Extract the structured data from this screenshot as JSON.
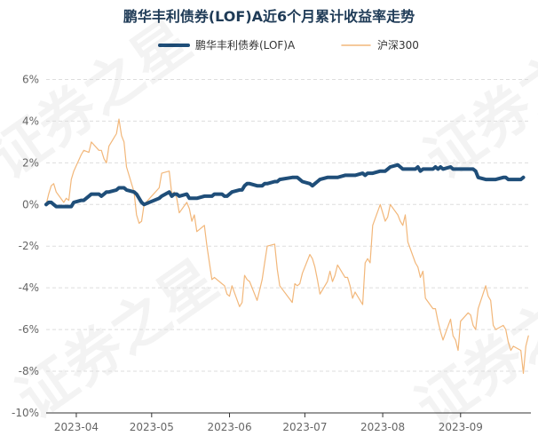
{
  "chart_data": {
    "type": "line",
    "title": "鹏华丰利债券(LOF)A近6个月累计收益率走势",
    "xlabel": "",
    "ylabel": "",
    "ylim": [
      -10,
      7
    ],
    "xlim": [
      "2023-03-20",
      "2023-09-29"
    ],
    "y_ticks": [
      "6%",
      "4%",
      "2%",
      "0%",
      "-2%",
      "-4%",
      "-6%",
      "-8%",
      "-10%"
    ],
    "x_ticks": [
      {
        "date": "2023-04-01",
        "label": "2023-04"
      },
      {
        "date": "2023-05-01",
        "label": "2023-05"
      },
      {
        "date": "2023-06-01",
        "label": "2023-06"
      },
      {
        "date": "2023-07-01",
        "label": "2023-07"
      },
      {
        "date": "2023-08-01",
        "label": "2023-08"
      },
      {
        "date": "2023-09-01",
        "label": "2023-09"
      }
    ],
    "grid": true,
    "legend_position": "top-center",
    "watermark": "证券之星",
    "series": [
      {
        "name": "鹏华丰利债券(LOF)A",
        "color": "#1f4e79",
        "points": [
          [
            "2023-03-20",
            0.0
          ],
          [
            "2023-03-21",
            0.1
          ],
          [
            "2023-03-22",
            0.1
          ],
          [
            "2023-03-23",
            0.0
          ],
          [
            "2023-03-24",
            -0.1
          ],
          [
            "2023-03-27",
            -0.1
          ],
          [
            "2023-03-28",
            -0.1
          ],
          [
            "2023-03-29",
            -0.1
          ],
          [
            "2023-03-30",
            -0.1
          ],
          [
            "2023-03-31",
            0.1
          ],
          [
            "2023-04-03",
            0.2
          ],
          [
            "2023-04-04",
            0.2
          ],
          [
            "2023-04-06",
            0.4
          ],
          [
            "2023-04-07",
            0.5
          ],
          [
            "2023-04-10",
            0.5
          ],
          [
            "2023-04-11",
            0.4
          ],
          [
            "2023-04-12",
            0.5
          ],
          [
            "2023-04-13",
            0.6
          ],
          [
            "2023-04-14",
            0.6
          ],
          [
            "2023-04-17",
            0.7
          ],
          [
            "2023-04-18",
            0.8
          ],
          [
            "2023-04-19",
            0.8
          ],
          [
            "2023-04-20",
            0.8
          ],
          [
            "2023-04-21",
            0.7
          ],
          [
            "2023-04-24",
            0.6
          ],
          [
            "2023-04-25",
            0.5
          ],
          [
            "2023-04-26",
            0.3
          ],
          [
            "2023-04-27",
            0.1
          ],
          [
            "2023-04-28",
            0.0
          ],
          [
            "2023-05-04",
            0.3
          ],
          [
            "2023-05-05",
            0.4
          ],
          [
            "2023-05-08",
            0.6
          ],
          [
            "2023-05-09",
            0.4
          ],
          [
            "2023-05-10",
            0.5
          ],
          [
            "2023-05-11",
            0.5
          ],
          [
            "2023-05-12",
            0.4
          ],
          [
            "2023-05-15",
            0.5
          ],
          [
            "2023-05-16",
            0.3
          ],
          [
            "2023-05-17",
            0.3
          ],
          [
            "2023-05-18",
            0.3
          ],
          [
            "2023-05-19",
            0.3
          ],
          [
            "2023-05-22",
            0.4
          ],
          [
            "2023-05-23",
            0.4
          ],
          [
            "2023-05-24",
            0.4
          ],
          [
            "2023-05-25",
            0.4
          ],
          [
            "2023-05-26",
            0.5
          ],
          [
            "2023-05-29",
            0.5
          ],
          [
            "2023-05-30",
            0.4
          ],
          [
            "2023-05-31",
            0.4
          ],
          [
            "2023-06-01",
            0.5
          ],
          [
            "2023-06-02",
            0.6
          ],
          [
            "2023-06-05",
            0.7
          ],
          [
            "2023-06-06",
            0.7
          ],
          [
            "2023-06-07",
            0.9
          ],
          [
            "2023-06-08",
            1.0
          ],
          [
            "2023-06-09",
            1.0
          ],
          [
            "2023-06-12",
            0.9
          ],
          [
            "2023-06-13",
            0.9
          ],
          [
            "2023-06-14",
            0.9
          ],
          [
            "2023-06-15",
            1.0
          ],
          [
            "2023-06-16",
            1.0
          ],
          [
            "2023-06-19",
            1.1
          ],
          [
            "2023-06-20",
            1.1
          ],
          [
            "2023-06-21",
            1.2
          ],
          [
            "2023-06-26",
            1.3
          ],
          [
            "2023-06-27",
            1.3
          ],
          [
            "2023-06-28",
            1.3
          ],
          [
            "2023-06-29",
            1.2
          ],
          [
            "2023-06-30",
            1.1
          ],
          [
            "2023-07-03",
            1.0
          ],
          [
            "2023-07-04",
            0.9
          ],
          [
            "2023-07-05",
            1.0
          ],
          [
            "2023-07-06",
            1.1
          ],
          [
            "2023-07-07",
            1.2
          ],
          [
            "2023-07-10",
            1.3
          ],
          [
            "2023-07-11",
            1.3
          ],
          [
            "2023-07-12",
            1.3
          ],
          [
            "2023-07-13",
            1.3
          ],
          [
            "2023-07-14",
            1.3
          ],
          [
            "2023-07-17",
            1.4
          ],
          [
            "2023-07-18",
            1.4
          ],
          [
            "2023-07-19",
            1.4
          ],
          [
            "2023-07-20",
            1.4
          ],
          [
            "2023-07-21",
            1.4
          ],
          [
            "2023-07-24",
            1.5
          ],
          [
            "2023-07-25",
            1.4
          ],
          [
            "2023-07-26",
            1.5
          ],
          [
            "2023-07-27",
            1.5
          ],
          [
            "2023-07-28",
            1.5
          ],
          [
            "2023-07-31",
            1.6
          ],
          [
            "2023-08-01",
            1.6
          ],
          [
            "2023-08-02",
            1.6
          ],
          [
            "2023-08-03",
            1.7
          ],
          [
            "2023-08-04",
            1.8
          ],
          [
            "2023-08-07",
            1.9
          ],
          [
            "2023-08-08",
            1.8
          ],
          [
            "2023-08-09",
            1.7
          ],
          [
            "2023-08-10",
            1.7
          ],
          [
            "2023-08-11",
            1.7
          ],
          [
            "2023-08-14",
            1.7
          ],
          [
            "2023-08-15",
            1.8
          ],
          [
            "2023-08-16",
            1.6
          ],
          [
            "2023-08-17",
            1.7
          ],
          [
            "2023-08-18",
            1.7
          ],
          [
            "2023-08-21",
            1.7
          ],
          [
            "2023-08-22",
            1.8
          ],
          [
            "2023-08-23",
            1.7
          ],
          [
            "2023-08-24",
            1.8
          ],
          [
            "2023-08-25",
            1.7
          ],
          [
            "2023-08-28",
            1.8
          ],
          [
            "2023-08-29",
            1.7
          ],
          [
            "2023-08-30",
            1.7
          ],
          [
            "2023-08-31",
            1.7
          ],
          [
            "2023-09-01",
            1.7
          ],
          [
            "2023-09-04",
            1.7
          ],
          [
            "2023-09-05",
            1.7
          ],
          [
            "2023-09-06",
            1.7
          ],
          [
            "2023-09-07",
            1.6
          ],
          [
            "2023-09-08",
            1.3
          ],
          [
            "2023-09-11",
            1.2
          ],
          [
            "2023-09-12",
            1.2
          ],
          [
            "2023-09-13",
            1.2
          ],
          [
            "2023-09-14",
            1.2
          ],
          [
            "2023-09-15",
            1.2
          ],
          [
            "2023-09-18",
            1.3
          ],
          [
            "2023-09-19",
            1.3
          ],
          [
            "2023-09-20",
            1.2
          ],
          [
            "2023-09-21",
            1.2
          ],
          [
            "2023-09-22",
            1.2
          ],
          [
            "2023-09-25",
            1.2
          ],
          [
            "2023-09-26",
            1.3
          ]
        ]
      },
      {
        "name": "沪深300",
        "color": "#f2b77a",
        "points": [
          [
            "2023-03-20",
            0.0
          ],
          [
            "2023-03-21",
            0.5
          ],
          [
            "2023-03-22",
            0.9
          ],
          [
            "2023-03-23",
            1.0
          ],
          [
            "2023-03-24",
            0.6
          ],
          [
            "2023-03-27",
            0.1
          ],
          [
            "2023-03-28",
            0.3
          ],
          [
            "2023-03-29",
            0.2
          ],
          [
            "2023-03-30",
            1.2
          ],
          [
            "2023-03-31",
            1.6
          ],
          [
            "2023-04-03",
            2.4
          ],
          [
            "2023-04-04",
            2.6
          ],
          [
            "2023-04-06",
            2.5
          ],
          [
            "2023-04-07",
            3.0
          ],
          [
            "2023-04-10",
            2.6
          ],
          [
            "2023-04-11",
            2.6
          ],
          [
            "2023-04-12",
            2.2
          ],
          [
            "2023-04-13",
            2.0
          ],
          [
            "2023-04-14",
            2.8
          ],
          [
            "2023-04-17",
            3.4
          ],
          [
            "2023-04-18",
            4.1
          ],
          [
            "2023-04-19",
            3.3
          ],
          [
            "2023-04-20",
            3.0
          ],
          [
            "2023-04-21",
            1.8
          ],
          [
            "2023-04-24",
            0.6
          ],
          [
            "2023-04-25",
            -0.5
          ],
          [
            "2023-04-26",
            -0.9
          ],
          [
            "2023-04-27",
            -0.8
          ],
          [
            "2023-04-28",
            0.0
          ],
          [
            "2023-05-04",
            0.8
          ],
          [
            "2023-05-05",
            1.5
          ],
          [
            "2023-05-08",
            1.6
          ],
          [
            "2023-05-09",
            0.5
          ],
          [
            "2023-05-10",
            0.6
          ],
          [
            "2023-05-11",
            0.3
          ],
          [
            "2023-05-12",
            -0.4
          ],
          [
            "2023-05-15",
            0.1
          ],
          [
            "2023-05-16",
            -0.2
          ],
          [
            "2023-05-17",
            -0.8
          ],
          [
            "2023-05-18",
            -0.5
          ],
          [
            "2023-05-19",
            -1.3
          ],
          [
            "2023-05-22",
            -1.0
          ],
          [
            "2023-05-23",
            -2.0
          ],
          [
            "2023-05-24",
            -2.8
          ],
          [
            "2023-05-25",
            -3.6
          ],
          [
            "2023-05-26",
            -3.5
          ],
          [
            "2023-05-29",
            -3.8
          ],
          [
            "2023-05-30",
            -3.9
          ],
          [
            "2023-05-31",
            -4.3
          ],
          [
            "2023-06-01",
            -4.4
          ],
          [
            "2023-06-02",
            -3.9
          ],
          [
            "2023-06-05",
            -4.9
          ],
          [
            "2023-06-06",
            -4.7
          ],
          [
            "2023-06-07",
            -3.4
          ],
          [
            "2023-06-08",
            -3.6
          ],
          [
            "2023-06-09",
            -3.7
          ],
          [
            "2023-06-12",
            -4.6
          ],
          [
            "2023-06-13",
            -4.1
          ],
          [
            "2023-06-14",
            -3.6
          ],
          [
            "2023-06-15",
            -2.8
          ],
          [
            "2023-06-16",
            -2.0
          ],
          [
            "2023-06-19",
            -1.9
          ],
          [
            "2023-06-20",
            -3.1
          ],
          [
            "2023-06-21",
            -3.9
          ],
          [
            "2023-06-26",
            -4.7
          ],
          [
            "2023-06-27",
            -3.8
          ],
          [
            "2023-06-28",
            -3.9
          ],
          [
            "2023-06-29",
            -3.8
          ],
          [
            "2023-06-30",
            -3.3
          ],
          [
            "2023-07-03",
            -2.4
          ],
          [
            "2023-07-04",
            -2.6
          ],
          [
            "2023-07-05",
            -3.0
          ],
          [
            "2023-07-06",
            -3.6
          ],
          [
            "2023-07-07",
            -4.3
          ],
          [
            "2023-07-10",
            -3.7
          ],
          [
            "2023-07-11",
            -3.2
          ],
          [
            "2023-07-12",
            -3.7
          ],
          [
            "2023-07-13",
            -3.4
          ],
          [
            "2023-07-14",
            -2.9
          ],
          [
            "2023-07-17",
            -3.5
          ],
          [
            "2023-07-18",
            -3.5
          ],
          [
            "2023-07-19",
            -3.9
          ],
          [
            "2023-07-20",
            -4.5
          ],
          [
            "2023-07-21",
            -4.2
          ],
          [
            "2023-07-24",
            -4.8
          ],
          [
            "2023-07-25",
            -2.8
          ],
          [
            "2023-07-26",
            -2.6
          ],
          [
            "2023-07-27",
            -2.8
          ],
          [
            "2023-07-28",
            -1.0
          ],
          [
            "2023-07-31",
            0.0
          ],
          [
            "2023-08-01",
            -0.4
          ],
          [
            "2023-08-02",
            -0.8
          ],
          [
            "2023-08-03",
            -0.6
          ],
          [
            "2023-08-04",
            0.0
          ],
          [
            "2023-08-07",
            -0.5
          ],
          [
            "2023-08-08",
            -0.8
          ],
          [
            "2023-08-09",
            -1.0
          ],
          [
            "2023-08-10",
            -0.5
          ],
          [
            "2023-08-11",
            -1.8
          ],
          [
            "2023-08-14",
            -2.8
          ],
          [
            "2023-08-15",
            -3.0
          ],
          [
            "2023-08-16",
            -3.5
          ],
          [
            "2023-08-17",
            -3.2
          ],
          [
            "2023-08-18",
            -4.5
          ],
          [
            "2023-08-21",
            -5.0
          ],
          [
            "2023-08-22",
            -5.0
          ],
          [
            "2023-08-23",
            -5.6
          ],
          [
            "2023-08-24",
            -6.1
          ],
          [
            "2023-08-25",
            -6.5
          ],
          [
            "2023-08-28",
            -5.5
          ],
          [
            "2023-08-29",
            -6.3
          ],
          [
            "2023-08-30",
            -6.5
          ],
          [
            "2023-08-31",
            -7.0
          ],
          [
            "2023-09-01",
            -5.6
          ],
          [
            "2023-09-04",
            -5.2
          ],
          [
            "2023-09-05",
            -5.3
          ],
          [
            "2023-09-06",
            -5.8
          ],
          [
            "2023-09-07",
            -6.0
          ],
          [
            "2023-09-08",
            -5.0
          ],
          [
            "2023-09-11",
            -3.9
          ],
          [
            "2023-09-12",
            -4.4
          ],
          [
            "2023-09-13",
            -4.6
          ],
          [
            "2023-09-14",
            -5.8
          ],
          [
            "2023-09-15",
            -6.0
          ],
          [
            "2023-09-18",
            -5.8
          ],
          [
            "2023-09-19",
            -6.0
          ],
          [
            "2023-09-20",
            -6.6
          ],
          [
            "2023-09-21",
            -7.0
          ],
          [
            "2023-09-22",
            -6.8
          ],
          [
            "2023-09-25",
            -7.0
          ],
          [
            "2023-09-26",
            -8.1
          ],
          [
            "2023-09-27",
            -6.8
          ],
          [
            "2023-09-28",
            -6.3
          ]
        ]
      }
    ]
  }
}
